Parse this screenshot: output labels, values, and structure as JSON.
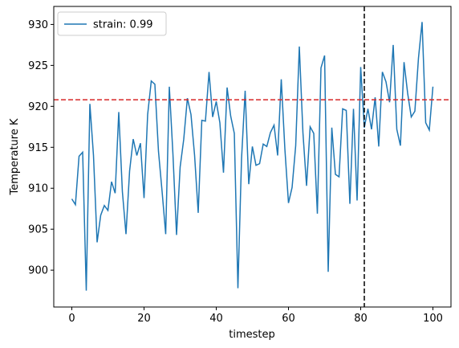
{
  "chart_data": {
    "type": "line",
    "xlabel": "timestep",
    "ylabel": "Temperature K",
    "x": [
      0,
      1,
      2,
      3,
      4,
      5,
      6,
      7,
      8,
      9,
      10,
      11,
      12,
      13,
      14,
      15,
      16,
      17,
      18,
      19,
      20,
      21,
      22,
      23,
      24,
      25,
      26,
      27,
      28,
      29,
      30,
      31,
      32,
      33,
      34,
      35,
      36,
      37,
      38,
      39,
      40,
      41,
      42,
      43,
      44,
      45,
      46,
      47,
      48,
      49,
      50,
      51,
      52,
      53,
      54,
      55,
      56,
      57,
      58,
      59,
      60,
      61,
      62,
      63,
      64,
      65,
      66,
      67,
      68,
      69,
      70,
      71,
      72,
      73,
      74,
      75,
      76,
      77,
      78,
      79,
      80,
      81,
      82,
      83,
      84,
      85,
      86,
      87,
      88,
      89,
      90,
      91,
      92,
      93,
      94,
      95,
      96,
      97,
      98,
      99,
      100
    ],
    "series": [
      {
        "name": "strain: 0.99",
        "color": "#1f77b4",
        "values": [
          908.7,
          908.0,
          913.9,
          914.4,
          897.5,
          920.3,
          914.0,
          903.4,
          906.7,
          907.9,
          907.3,
          910.8,
          909.4,
          919.3,
          909.6,
          904.4,
          912.1,
          916.0,
          914.0,
          915.5,
          908.8,
          919.0,
          923.1,
          922.7,
          914.5,
          909.6,
          904.4,
          922.4,
          914.2,
          904.3,
          912.6,
          916.0,
          921.0,
          919.0,
          914.0,
          907.0,
          918.3,
          918.2,
          924.2,
          918.7,
          920.6,
          918.0,
          911.9,
          922.3,
          918.8,
          916.7,
          897.8,
          913.6,
          921.9,
          910.5,
          915.1,
          912.8,
          913.0,
          915.4,
          915.1,
          916.8,
          917.7,
          914.0,
          923.3,
          914.8,
          908.2,
          910.1,
          915.2,
          927.3,
          916.8,
          910.3,
          917.5,
          916.7,
          906.9,
          924.7,
          926.2,
          899.8,
          917.4,
          911.7,
          911.4,
          919.7,
          919.5,
          908.1,
          919.7,
          908.5,
          924.8,
          917.4,
          919.7,
          917.2,
          921.1,
          915.1,
          924.2,
          923.0,
          920.5,
          927.5,
          917.2,
          915.2,
          925.4,
          921.6,
          918.7,
          919.4,
          925.9,
          930.3,
          918.0,
          917.1,
          922.4
        ]
      }
    ],
    "hlines": [
      {
        "value": 920.8,
        "color": "#d62728"
      }
    ],
    "vlines": [
      {
        "value": 81,
        "color": "#000000"
      }
    ],
    "xlim": [
      -5,
      105
    ],
    "ylim": [
      895.5,
      932.2
    ],
    "xticks": [
      0,
      20,
      40,
      60,
      80,
      100
    ],
    "yticks": [
      900,
      905,
      910,
      915,
      920,
      925,
      930
    ],
    "legend": "upper left"
  }
}
